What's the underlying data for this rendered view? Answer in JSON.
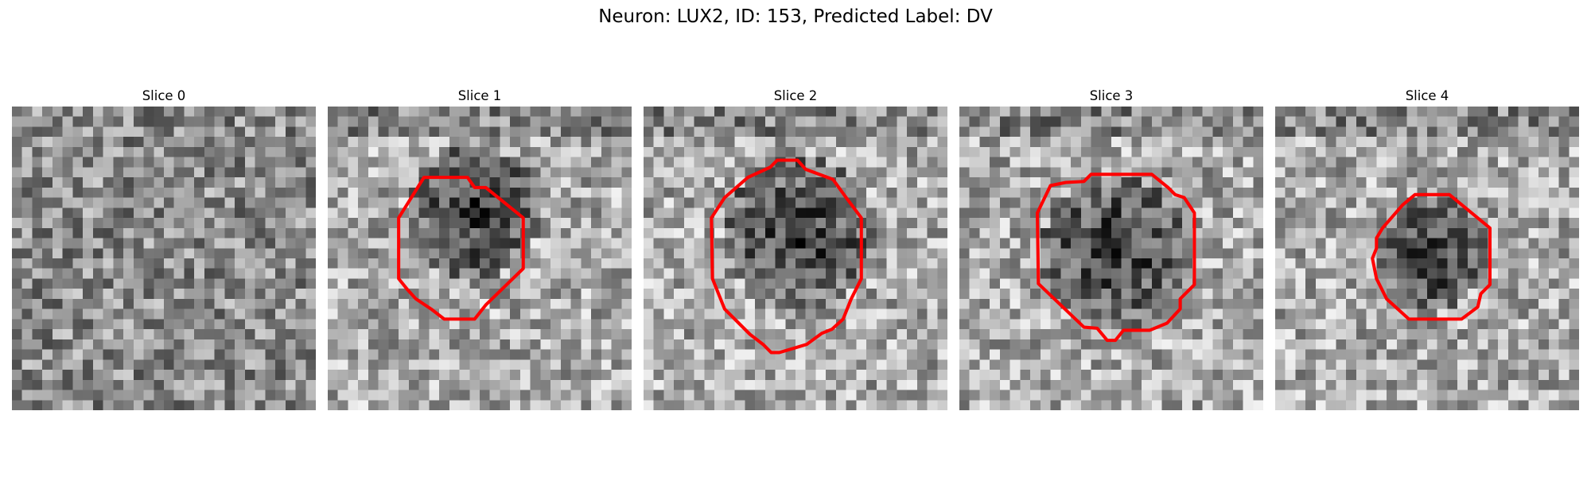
{
  "figure": {
    "title": "Neuron: LUX2, ID: 153, Predicted Label: DV",
    "colormap": "gray",
    "contour_color": "#ff0000",
    "grid_size": 30,
    "slices": [
      {
        "label": "Slice 0",
        "seed": 101,
        "dark_center": null,
        "has_contour": false
      },
      {
        "label": "Slice 1",
        "seed": 211,
        "dark_center": [
          14,
          10,
          6.5
        ],
        "has_contour": true
      },
      {
        "label": "Slice 2",
        "seed": 317,
        "dark_center": [
          15,
          12,
          7.5
        ],
        "has_contour": true
      },
      {
        "label": "Slice 3",
        "seed": 433,
        "dark_center": [
          15,
          14,
          7.5
        ],
        "has_contour": true
      },
      {
        "label": "Slice 4",
        "seed": 541,
        "dark_center": [
          15,
          14,
          5.5
        ],
        "has_contour": true
      }
    ]
  }
}
